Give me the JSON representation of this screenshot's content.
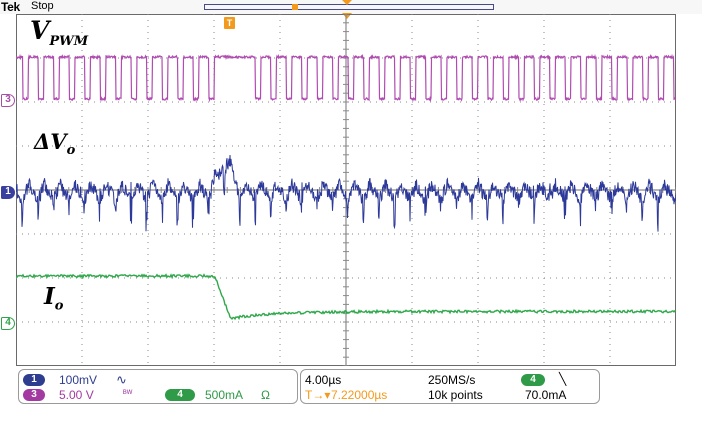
{
  "header": {
    "brand": "Tek",
    "run_state": "Stop",
    "trigger_marker": "T"
  },
  "colors": {
    "ch1": "#2e3a9a",
    "ch3": "#b04cb0",
    "ch4": "#2ea84a",
    "trigger": "#f39a1c",
    "grid": "#8a8a8a"
  },
  "channels": {
    "ch3": {
      "number": "3",
      "label": "V",
      "label_sub": "PWM",
      "scale": "5.00 V",
      "coupling_icon": "bw-limit-icon"
    },
    "ch1": {
      "number": "1",
      "label": "ΔV",
      "label_sub": "o",
      "scale": "100mV",
      "coupling_icon": "ac-coupling-icon"
    },
    "ch4": {
      "number": "4",
      "label": "I",
      "label_sub": "o",
      "scale": "500mA",
      "coupling_icon": "ohm-icon",
      "unit_symbol": "Ω"
    }
  },
  "coupling_symbols": {
    "ac": "∿",
    "bw": "ᴮᵂ"
  },
  "timebase": {
    "scale": "4.00µs",
    "sample_rate": "250MS/s",
    "trigger_position": "7.22000µs",
    "trigger_position_prefix": "T→▾",
    "record_length": "10k points",
    "trigger_source": "4",
    "trigger_slope_symbol": "╲",
    "trigger_level": "70.0mA"
  }
}
